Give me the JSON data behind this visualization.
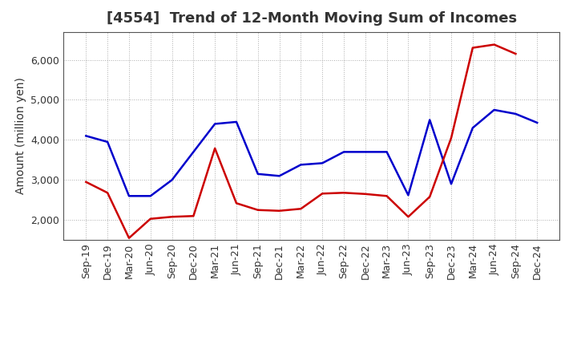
{
  "title": "[4554]  Trend of 12-Month Moving Sum of Incomes",
  "ylabel": "Amount (million yen)",
  "x_labels": [
    "Sep-19",
    "Dec-19",
    "Mar-20",
    "Jun-20",
    "Sep-20",
    "Dec-20",
    "Mar-21",
    "Jun-21",
    "Sep-21",
    "Dec-21",
    "Mar-22",
    "Jun-22",
    "Sep-22",
    "Dec-22",
    "Mar-23",
    "Jun-23",
    "Sep-23",
    "Dec-23",
    "Mar-24",
    "Jun-24",
    "Sep-24",
    "Dec-24"
  ],
  "ordinary_income": [
    4100,
    3950,
    2600,
    2600,
    3000,
    3700,
    4400,
    4450,
    3150,
    3100,
    3380,
    3420,
    3700,
    3700,
    3700,
    2620,
    4500,
    2900,
    4300,
    4750,
    4650,
    4430
  ],
  "net_income": [
    2950,
    2680,
    1550,
    2030,
    2080,
    2100,
    3790,
    2420,
    2250,
    2230,
    2280,
    2660,
    2680,
    2650,
    2600,
    2080,
    2580,
    4050,
    6300,
    6380,
    6150,
    null
  ],
  "ordinary_income_color": "#0000cc",
  "net_income_color": "#cc0000",
  "ylim": [
    1500,
    6700
  ],
  "yticks": [
    2000,
    3000,
    4000,
    5000,
    6000
  ],
  "background_color": "#ffffff",
  "grid_color": "#999999",
  "title_fontsize": 13,
  "ylabel_fontsize": 10,
  "tick_fontsize": 9,
  "legend_fontsize": 10,
  "line_width": 1.8
}
